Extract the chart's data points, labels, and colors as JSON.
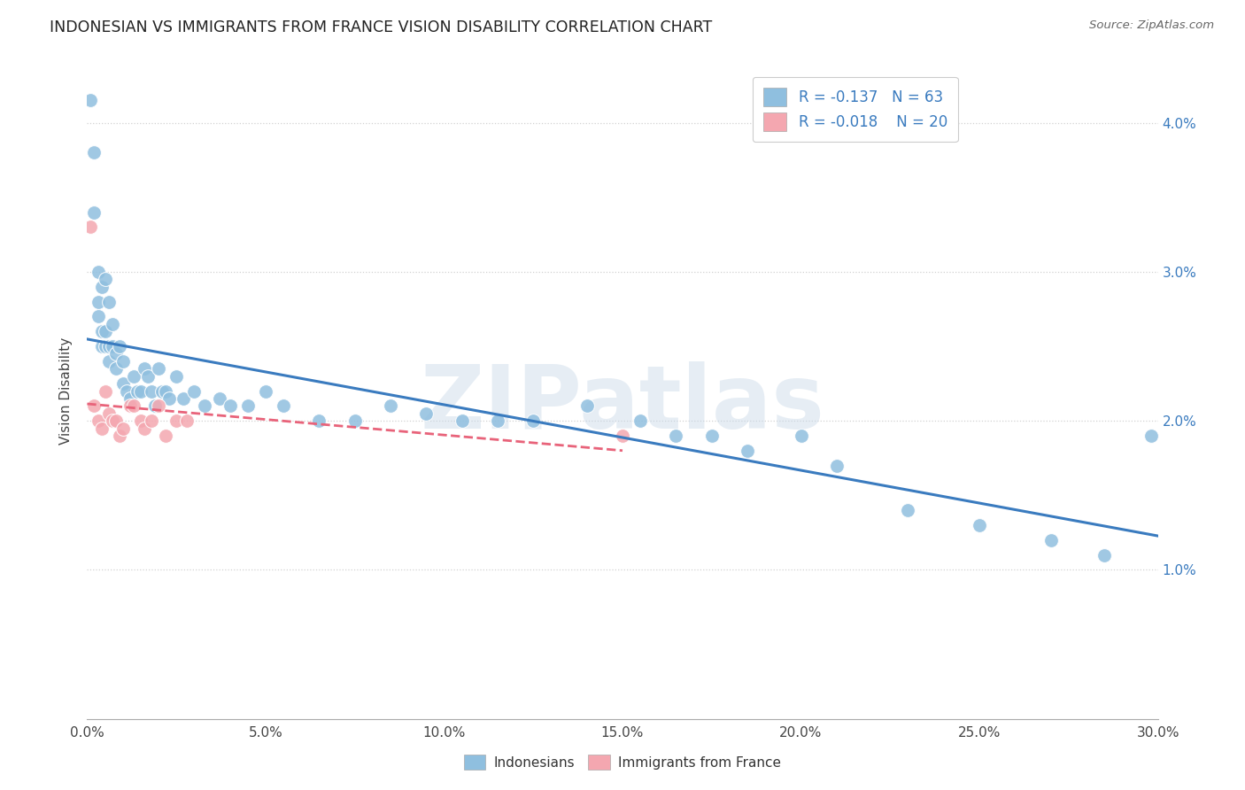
{
  "title": "INDONESIAN VS IMMIGRANTS FROM FRANCE VISION DISABILITY CORRELATION CHART",
  "source": "Source: ZipAtlas.com",
  "ylabel": "Vision Disability",
  "watermark": "ZIPatlas",
  "xlim": [
    0.0,
    0.3
  ],
  "ylim": [
    0.0,
    0.044
  ],
  "xtick_vals": [
    0.0,
    0.05,
    0.1,
    0.15,
    0.2,
    0.25,
    0.3
  ],
  "ytick_vals": [
    0.01,
    0.02,
    0.03,
    0.04
  ],
  "ytick_labels": [
    "1.0%",
    "2.0%",
    "3.0%",
    "4.0%"
  ],
  "xtick_labels": [
    "0.0%",
    "5.0%",
    "10.0%",
    "15.0%",
    "20.0%",
    "25.0%",
    "30.0%"
  ],
  "r_indonesian": -0.137,
  "n_indonesian": 63,
  "r_france": -0.018,
  "n_france": 20,
  "color_indonesian": "#8fbfdf",
  "color_france": "#f4a7b0",
  "color_indonesian_line": "#3a7bbf",
  "color_france_line": "#e8637a",
  "background_color": "#ffffff",
  "grid_color": "#cccccc",
  "indonesian_x": [
    0.001,
    0.002,
    0.002,
    0.003,
    0.003,
    0.003,
    0.004,
    0.004,
    0.004,
    0.005,
    0.005,
    0.005,
    0.006,
    0.006,
    0.006,
    0.007,
    0.007,
    0.008,
    0.008,
    0.009,
    0.01,
    0.01,
    0.011,
    0.012,
    0.013,
    0.014,
    0.015,
    0.016,
    0.017,
    0.018,
    0.019,
    0.02,
    0.021,
    0.022,
    0.023,
    0.025,
    0.027,
    0.03,
    0.033,
    0.037,
    0.04,
    0.045,
    0.05,
    0.055,
    0.065,
    0.075,
    0.085,
    0.095,
    0.105,
    0.115,
    0.125,
    0.14,
    0.155,
    0.165,
    0.175,
    0.185,
    0.2,
    0.21,
    0.23,
    0.25,
    0.27,
    0.285,
    0.298
  ],
  "indonesian_y": [
    0.0415,
    0.038,
    0.034,
    0.03,
    0.028,
    0.027,
    0.029,
    0.026,
    0.025,
    0.0295,
    0.026,
    0.025,
    0.028,
    0.025,
    0.024,
    0.0265,
    0.025,
    0.0245,
    0.0235,
    0.025,
    0.024,
    0.0225,
    0.022,
    0.0215,
    0.023,
    0.022,
    0.022,
    0.0235,
    0.023,
    0.022,
    0.021,
    0.0235,
    0.022,
    0.022,
    0.0215,
    0.023,
    0.0215,
    0.022,
    0.021,
    0.0215,
    0.021,
    0.021,
    0.022,
    0.021,
    0.02,
    0.02,
    0.021,
    0.0205,
    0.02,
    0.02,
    0.02,
    0.021,
    0.02,
    0.019,
    0.019,
    0.018,
    0.019,
    0.017,
    0.014,
    0.013,
    0.012,
    0.011,
    0.019
  ],
  "france_x": [
    0.001,
    0.002,
    0.003,
    0.004,
    0.005,
    0.006,
    0.007,
    0.008,
    0.009,
    0.01,
    0.012,
    0.013,
    0.015,
    0.016,
    0.018,
    0.02,
    0.022,
    0.025,
    0.028,
    0.15
  ],
  "france_y": [
    0.033,
    0.021,
    0.02,
    0.0195,
    0.022,
    0.0205,
    0.02,
    0.02,
    0.019,
    0.0195,
    0.021,
    0.021,
    0.02,
    0.0195,
    0.02,
    0.021,
    0.019,
    0.02,
    0.02,
    0.019
  ]
}
